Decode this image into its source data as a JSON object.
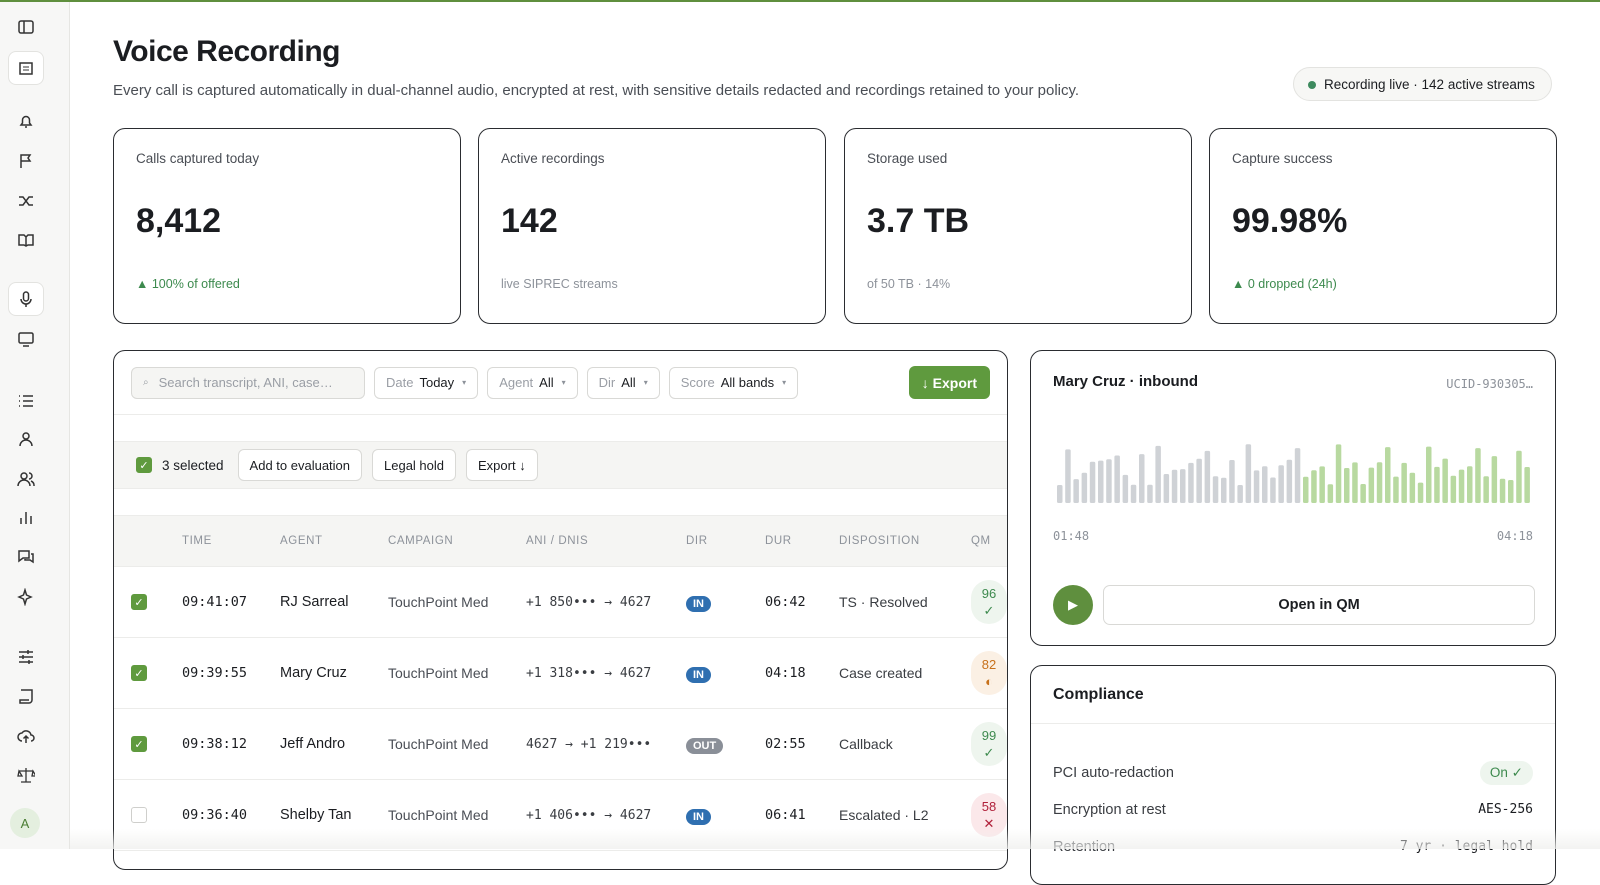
{
  "sidebar": {
    "avatar": "A"
  },
  "header": {
    "title": "Voice Recording",
    "subtitle": "Every call is captured automatically in dual-channel audio, encrypted at rest, with sensitive details redacted and recordings retained to your policy.",
    "status": "Recording live · 142 active streams"
  },
  "kpis": [
    {
      "label": "Calls captured today",
      "value": "8,412",
      "note": "▲ 100% of offered",
      "note_color": "#3d8a4e"
    },
    {
      "label": "Active recordings",
      "value": "142",
      "note": "live SIPREC streams",
      "note_color": "#8d929a"
    },
    {
      "label": "Storage used",
      "value": "3.7 TB",
      "note": "of 50 TB · 14%",
      "note_color": "#8d929a"
    },
    {
      "label": "Capture success",
      "value": "99.98%",
      "note": "▲ 0 dropped (24h)",
      "note_color": "#3d8a4e"
    }
  ],
  "filters": {
    "search": "Search transcript, ANI, case…",
    "items": [
      {
        "label": "Date",
        "value": "Today"
      },
      {
        "label": "Agent",
        "value": "All"
      },
      {
        "label": "Dir",
        "value": "All"
      },
      {
        "label": "Score",
        "value": "All bands"
      }
    ],
    "export": "↓ Export"
  },
  "selection": {
    "count": "3 selected",
    "actions": [
      "Add to evaluation",
      "Legal hold",
      "Export ↓"
    ]
  },
  "table": {
    "columns": [
      "TIME",
      "AGENT",
      "CAMPAIGN",
      "ANI / DNIS",
      "DIR",
      "DUR",
      "DISPOSITION",
      "QM"
    ],
    "rows": [
      {
        "checked": true,
        "time": "09:41:07",
        "agent": "RJ Sarreal",
        "campaign": "TouchPoint Med",
        "ani": "+1 850••• → 4627",
        "dir": "IN",
        "dur": "06:42",
        "disposition": "TS · Resolved",
        "qm": "96",
        "qm_icon": "✓",
        "qm_color": "#3d8a4e",
        "qm_bg": "#eef5ee"
      },
      {
        "checked": true,
        "time": "09:39:55",
        "agent": "Mary Cruz",
        "campaign": "TouchPoint Med",
        "ani": "+1 318••• → 4627",
        "dir": "IN",
        "dur": "04:18",
        "disposition": "Case created",
        "qm": "82",
        "qm_icon": "◐",
        "qm_color": "#c7711b",
        "qm_bg": "#fbf0e4"
      },
      {
        "checked": true,
        "time": "09:38:12",
        "agent": "Jeff Andro",
        "campaign": "TouchPoint Med",
        "ani": "4627 → +1 219•••",
        "dir": "OUT",
        "dur": "02:55",
        "disposition": "Callback",
        "qm": "99",
        "qm_icon": "✓",
        "qm_color": "#3d8a4e",
        "qm_bg": "#eef5ee"
      },
      {
        "checked": false,
        "time": "09:36:40",
        "agent": "Shelby Tan",
        "campaign": "TouchPoint Med",
        "ani": "+1 406••• → 4627",
        "dir": "IN",
        "dur": "06:41",
        "disposition": "Escalated · L2",
        "qm": "58",
        "qm_icon": "✕",
        "qm_color": "#b0203a",
        "qm_bg": "#fbe8ea"
      }
    ]
  },
  "player": {
    "title": "Mary Cruz · inbound",
    "ucid": "UCID-930305…",
    "start": "01:48",
    "end": "04:18",
    "button": "Open in QM"
  },
  "compliance": {
    "title": "Compliance",
    "items": [
      {
        "label": "PCI auto-redaction",
        "value": "On ✓"
      },
      {
        "label": "Encryption at rest",
        "value": "AES-256"
      },
      {
        "label": "Retention",
        "value": "7 yr · legal hold"
      }
    ]
  }
}
